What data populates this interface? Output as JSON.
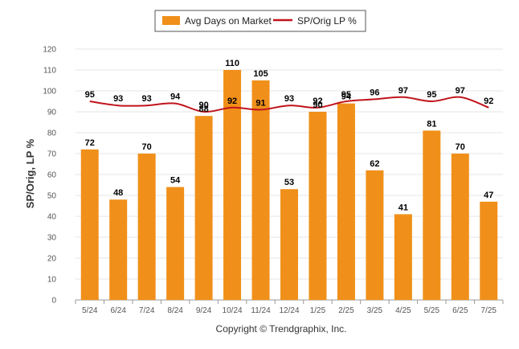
{
  "chart_data": {
    "type": "bar",
    "categories": [
      "5/24",
      "6/24",
      "7/24",
      "8/24",
      "9/24",
      "10/24",
      "11/24",
      "12/24",
      "1/25",
      "2/25",
      "3/25",
      "4/25",
      "5/25",
      "6/25",
      "7/25"
    ],
    "series": [
      {
        "name": "Avg Days on Market",
        "type": "bar",
        "color": "#f0901a",
        "values": [
          72,
          48,
          70,
          54,
          88,
          110,
          105,
          53,
          90,
          94,
          62,
          41,
          81,
          70,
          47
        ]
      },
      {
        "name": "SP/Orig LP %",
        "type": "line",
        "color": "#c0141c",
        "values": [
          95,
          93,
          93,
          94,
          90,
          92,
          91,
          93,
          92,
          95,
          96,
          97,
          95,
          97,
          92
        ]
      }
    ],
    "ylabel": "SP/Orig, LP %",
    "yticks": [
      0,
      10,
      20,
      30,
      40,
      50,
      60,
      70,
      80,
      90,
      100,
      110,
      120
    ],
    "ylim": [
      0,
      120
    ],
    "grid": true,
    "legend_position": "top-center"
  },
  "copyright": "Copyright © Trendgraphix, Inc."
}
